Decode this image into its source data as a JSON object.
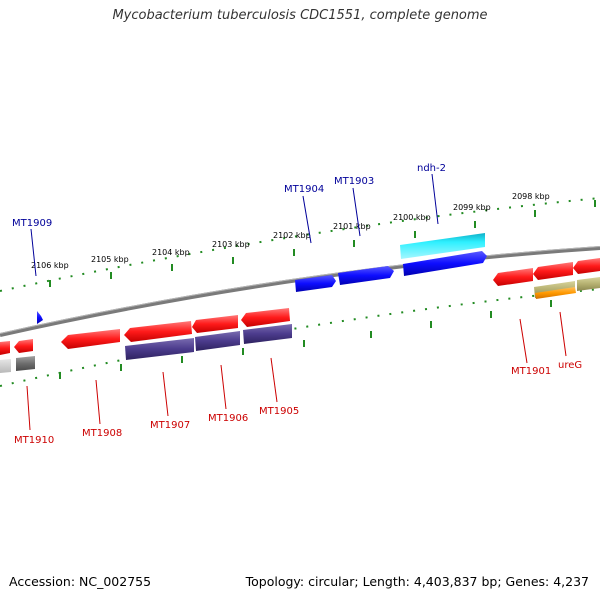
{
  "title": "Mycobacterium tuberculosis CDC1551, complete genome",
  "footer": {
    "accession": "Accession: NC_002755",
    "summary": "Topology: circular; Length: 4,403,837 bp; Genes: 4,237"
  },
  "colors": {
    "backbone": "#808080",
    "tick": "#228b22",
    "forward_label": "#000099",
    "reverse_label": "#cc0000",
    "gene_red": "#ff1a1a",
    "gene_blue": "#0d0dff",
    "gene_cyan": "#1ae0ff",
    "gene_purple": "#4b3b8c",
    "gene_khaki": "#b5b070",
    "gene_orange": "#ff9900",
    "gene_grey": "#6e6e6e"
  },
  "scale_labels": [
    "2106 kbp",
    "2105 kbp",
    "2104 kbp",
    "2103 kbp",
    "2102 kbp",
    "2101 kbp",
    "2100 kbp",
    "2099 kbp",
    "2098 kbp"
  ],
  "forward_labels": [
    "MT1909",
    "MT1904",
    "MT1903",
    "ndh-2"
  ],
  "reverse_labels": [
    "MT1910",
    "MT1908",
    "MT1907",
    "MT1906",
    "MT1905",
    "MT1901",
    "ureG"
  ]
}
